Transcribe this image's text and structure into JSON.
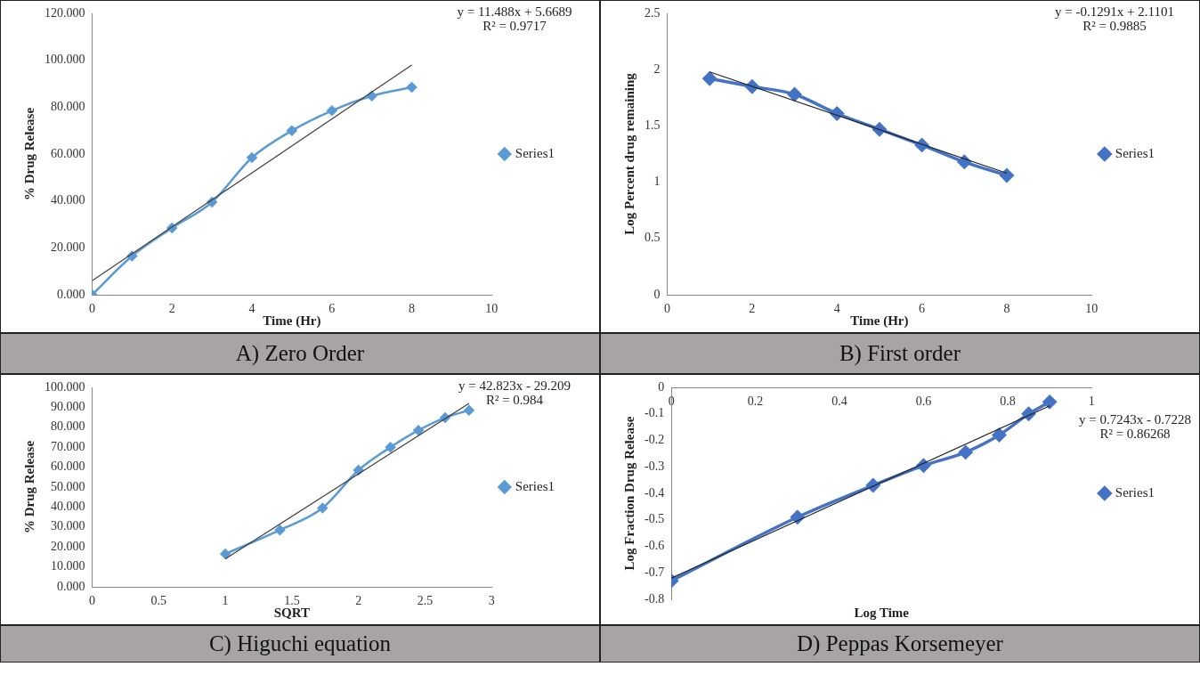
{
  "chart_data": [
    {
      "type": "line",
      "title": "A) Zero Order",
      "xlabel": "Time (Hr)",
      "ylabel": "% Drug Release",
      "xlim": [
        0,
        10
      ],
      "xticks": [
        0,
        2,
        4,
        6,
        8,
        10
      ],
      "ylim": [
        0,
        120
      ],
      "yticks": [
        {
          "value": 0,
          "label": "0.000"
        },
        {
          "value": 20,
          "label": "20.000"
        },
        {
          "value": 40,
          "label": "40.000"
        },
        {
          "value": 60,
          "label": "60.000"
        },
        {
          "value": 80,
          "label": "80.000"
        },
        {
          "value": 100,
          "label": "100.000"
        },
        {
          "value": 120,
          "label": "120.000"
        }
      ],
      "legend": "right",
      "marker": "diamond",
      "annotations": [
        "y = 11.488x + 5.6689",
        "R² = 0.9717"
      ],
      "series": [
        {
          "name": "Series1",
          "color": "#5b9bd5",
          "x": [
            0,
            1,
            2,
            3,
            4,
            5,
            6,
            7,
            8
          ],
          "values": [
            0,
            16.5,
            28.5,
            39.5,
            58.5,
            70,
            78.5,
            84.8,
            88.5
          ]
        },
        {
          "type": "line",
          "color": "#404040",
          "marker": "none",
          "x": [
            0,
            8
          ],
          "values": [
            6,
            98
          ]
        }
      ]
    },
    {
      "type": "line",
      "title": "B) First order",
      "xlabel": "Time (Hr)",
      "ylabel": "Log Percent drug remaining",
      "xlim": [
        0,
        10
      ],
      "xticks": [
        0,
        2,
        4,
        6,
        8,
        10
      ],
      "ylim": [
        0,
        2.5
      ],
      "yticks": [
        0,
        0.5,
        1,
        1.5,
        2,
        2.5
      ],
      "legend": "right",
      "marker": "diamond",
      "annotations": [
        "y = -0.1291x + 2.1101",
        "R² = 0.9885"
      ],
      "series": [
        {
          "name": "Series1",
          "color": "#4472c4",
          "x": [
            1,
            2,
            3,
            4,
            5,
            6,
            7,
            8
          ],
          "values": [
            1.92,
            1.85,
            1.78,
            1.61,
            1.47,
            1.33,
            1.18,
            1.06
          ]
        },
        {
          "type": "line",
          "color": "#202020",
          "marker": "none",
          "x": [
            1,
            8
          ],
          "values": [
            1.98,
            1.08
          ]
        }
      ]
    },
    {
      "type": "line",
      "title": "C) Higuchi equation",
      "xlabel": "SQRT",
      "ylabel": "% Drug Release",
      "xlim": [
        0,
        3
      ],
      "xticks": [
        0,
        0.5,
        1,
        1.5,
        2,
        2.5,
        3
      ],
      "ylim": [
        0,
        100
      ],
      "yticks": [
        {
          "value": 0,
          "label": "0.000"
        },
        {
          "value": 10,
          "label": "10.000"
        },
        {
          "value": 20,
          "label": "20.000"
        },
        {
          "value": 30,
          "label": "30.000"
        },
        {
          "value": 40,
          "label": "40.000"
        },
        {
          "value": 50,
          "label": "50.000"
        },
        {
          "value": 60,
          "label": "60.000"
        },
        {
          "value": 70,
          "label": "70.000"
        },
        {
          "value": 80,
          "label": "80.000"
        },
        {
          "value": 90,
          "label": "90.000"
        },
        {
          "value": 100,
          "label": "100.000"
        }
      ],
      "legend": "right",
      "marker": "diamond",
      "annotations": [
        "y = 42.823x - 29.209",
        "R² = 0.984"
      ],
      "series": [
        {
          "name": "Series1",
          "color": "#5b9bd5",
          "x": [
            1,
            1.41,
            1.73,
            2,
            2.24,
            2.45,
            2.65,
            2.83
          ],
          "values": [
            16.5,
            28.5,
            39.5,
            58.5,
            70,
            78.5,
            84.8,
            88.5
          ]
        },
        {
          "type": "line",
          "color": "#404040",
          "marker": "none",
          "x": [
            1,
            2.83
          ],
          "values": [
            14,
            92
          ]
        }
      ]
    },
    {
      "type": "line",
      "title": "D) Peppas Korsemeyer",
      "xlabel": "Log Time",
      "ylabel": "Log Fraction Drug Release",
      "xlim": [
        0,
        1
      ],
      "xticks": [
        0,
        0.2,
        0.4,
        0.6,
        0.8,
        1
      ],
      "ylim": [
        -0.8,
        0
      ],
      "yticks": [
        -0.8,
        -0.7,
        -0.6,
        -0.5,
        -0.4,
        -0.3,
        -0.2,
        -0.1,
        0
      ],
      "legend": "right",
      "marker": "diamond",
      "annotations": [
        "y = 0.7243x - 0.7228",
        "R² = 0.86268"
      ],
      "series": [
        {
          "name": "Series1",
          "color": "#4472c4",
          "x": [
            0,
            0.3,
            0.48,
            0.6,
            0.7,
            0.78,
            0.85,
            0.9
          ],
          "values": [
            -0.73,
            -0.49,
            -0.37,
            -0.295,
            -0.245,
            -0.18,
            -0.1,
            -0.055
          ]
        },
        {
          "type": "line",
          "color": "#202020",
          "marker": "none",
          "x": [
            0,
            0.9
          ],
          "values": [
            -0.72,
            -0.07
          ]
        }
      ]
    }
  ]
}
